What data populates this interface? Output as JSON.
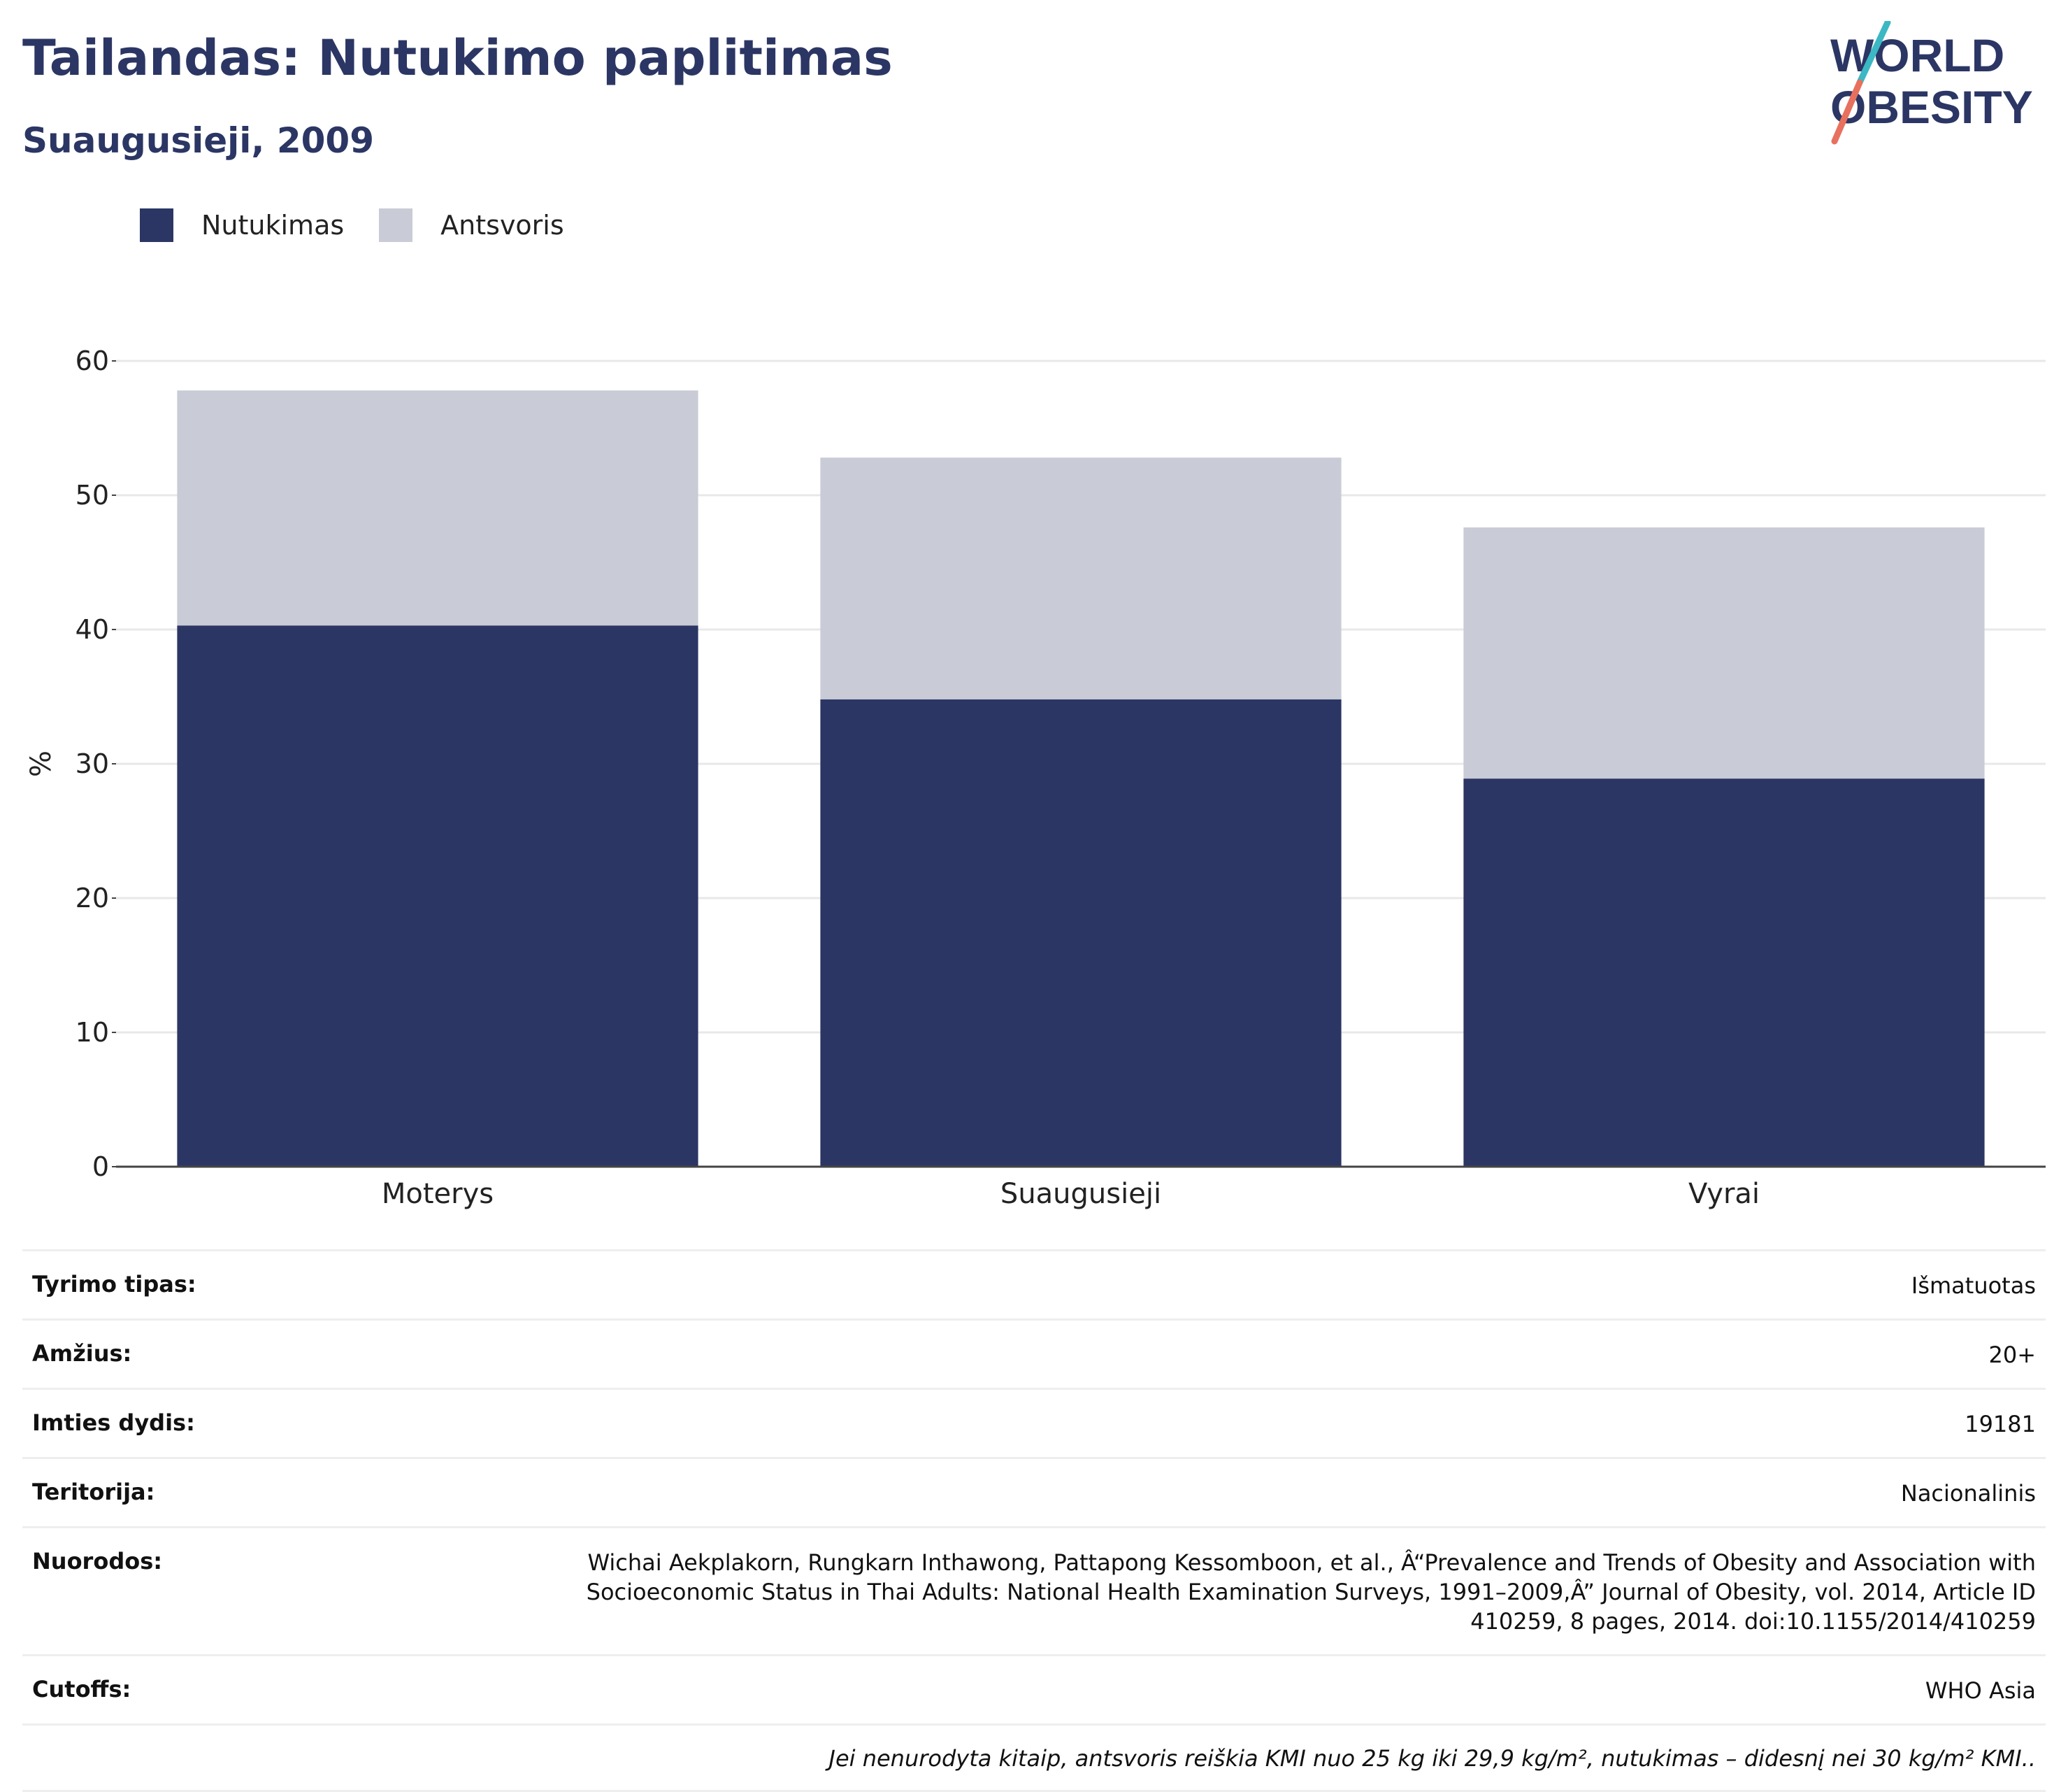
{
  "header": {
    "title": "Tailandas: Nutukimo paplitimas",
    "subtitle": "Suaugusieji, 2009"
  },
  "logo": {
    "line1": "WORLD",
    "line2": "OBESITY"
  },
  "colors": {
    "obesity": "#2b3664",
    "overweight": "#c9cbd6",
    "title": "#2b3664",
    "logo_teal": "#3bb8c4",
    "logo_coral": "#e8705e"
  },
  "chart_data": {
    "type": "bar",
    "stacked": true,
    "categories": [
      "Moterys",
      "Suaugusieji",
      "Vyrai"
    ],
    "series": [
      {
        "name": "Nutukimas",
        "values": [
          40.3,
          34.8,
          28.9
        ]
      },
      {
        "name": "Antsvoris",
        "values": [
          17.5,
          18.0,
          18.7
        ]
      }
    ],
    "ylabel": "%",
    "ylim": [
      0,
      60
    ],
    "yticks": [
      0,
      10,
      20,
      30,
      40,
      50,
      60
    ],
    "grid": true,
    "legend_position": "top-left"
  },
  "meta": {
    "rows": [
      {
        "key": "Tyrimo tipas:",
        "value": "Išmatuotas"
      },
      {
        "key": "Amžius:",
        "value": "20+"
      },
      {
        "key": "Imties dydis:",
        "value": "19181"
      },
      {
        "key": "Teritorija:",
        "value": "Nacionalinis"
      },
      {
        "key": "Nuorodos:",
        "value": "Wichai Aekplakorn, Rungkarn Inthawong, Pattapong Kessomboon, et al., Â“Prevalence and Trends of Obesity and Association with Socioeconomic Status in Thai Adults: National Health Examination Surveys, 1991–2009,Â” Journal of Obesity, vol. 2014, Article ID 410259, 8 pages, 2014. doi:10.1155/2014/410259"
      },
      {
        "key": "Cutoffs:",
        "value": "WHO Asia"
      }
    ],
    "note": "Jei nenurodyta kitaip, antsvoris reiškia KMI nuo 25 kg iki 29,9 kg/m², nutukimas – didesnį nei 30 kg/m² KMI.."
  }
}
